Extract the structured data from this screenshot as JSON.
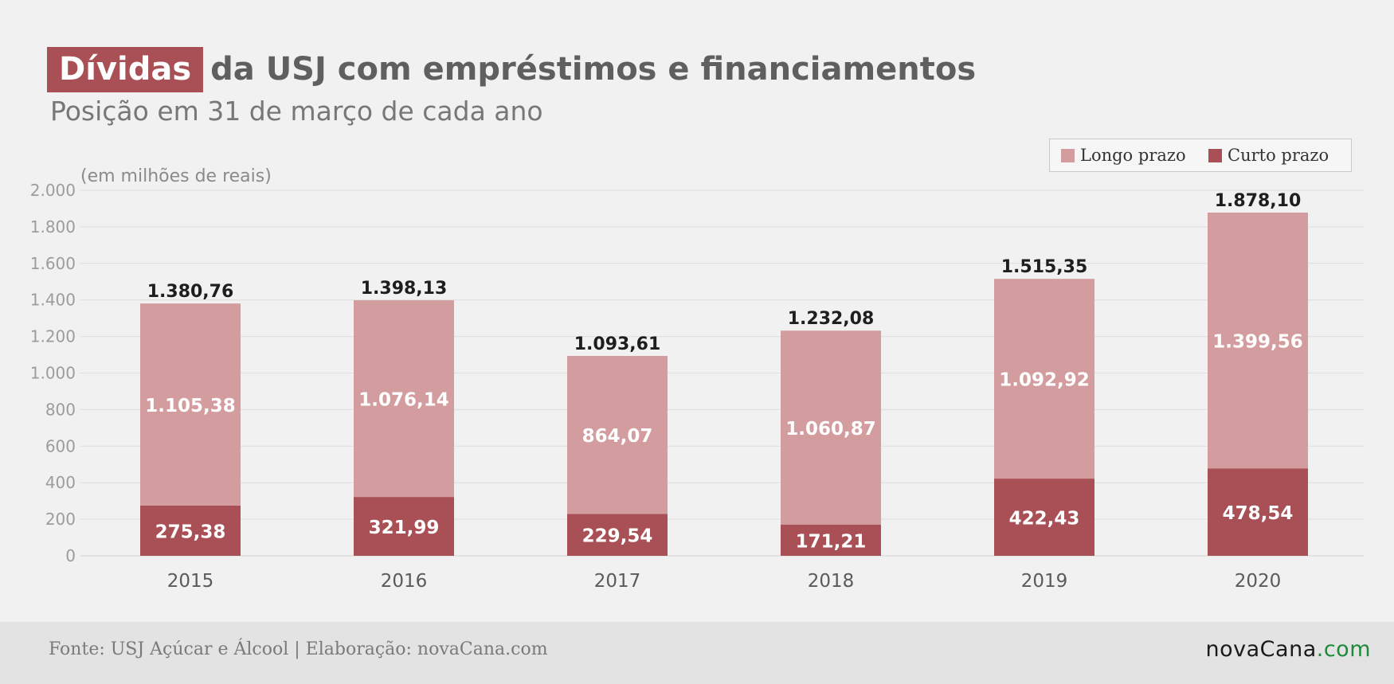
{
  "title": {
    "highlight": "Dívidas",
    "rest": "da USJ com empréstimos e financiamentos"
  },
  "subtitle": "Posição em 31 de março de cada ano",
  "colors": {
    "longo_prazo": "#d39c9e",
    "curto_prazo": "#a95056",
    "background": "#f1f1f1",
    "footer_background": "#e3e3e3",
    "logo_domain": "#1f8a3c"
  },
  "legend": {
    "items": [
      {
        "label": "Longo prazo",
        "color": "#d39c9e"
      },
      {
        "label": "Curto prazo",
        "color": "#a95056"
      }
    ],
    "placement": "top-right"
  },
  "footer": {
    "source": "Fonte: USJ Açúcar e Álcool | Elaboração: novaCana.com",
    "logo_main": "novaCana",
    "logo_domain": ".com"
  },
  "chart_data": {
    "type": "bar",
    "stacked": true,
    "unit_note": "(em milhões de reais)",
    "categories": [
      "2015",
      "2016",
      "2017",
      "2018",
      "2019",
      "2020"
    ],
    "series": [
      {
        "name": "Curto prazo",
        "values": [
          275.38,
          321.99,
          229.54,
          171.21,
          422.43,
          478.54
        ],
        "labels": [
          "275,38",
          "321,99",
          "229,54",
          "171,21",
          "422,43",
          "478,54"
        ]
      },
      {
        "name": "Longo prazo",
        "values": [
          1105.38,
          1076.14,
          864.07,
          1060.87,
          1092.92,
          1399.56
        ],
        "labels": [
          "1.105,38",
          "1.076,14",
          "864,07",
          "1.060,87",
          "1.092,92",
          "1.399,56"
        ]
      }
    ],
    "totals": [
      1380.76,
      1398.13,
      1093.61,
      1232.08,
      1515.35,
      1878.1
    ],
    "total_labels": [
      "1.380,76",
      "1.398,13",
      "1.093,61",
      "1.232,08",
      "1.515,35",
      "1.878,10"
    ],
    "ylim": [
      0,
      2000
    ],
    "yticks": [
      0,
      200,
      400,
      600,
      800,
      1000,
      1200,
      1400,
      1600,
      1800,
      2000
    ],
    "ytick_labels": [
      "0",
      "200",
      "400",
      "600",
      "800",
      "1.000",
      "1.200",
      "1.400",
      "1.600",
      "1.800",
      "2.000"
    ],
    "grid": true
  }
}
